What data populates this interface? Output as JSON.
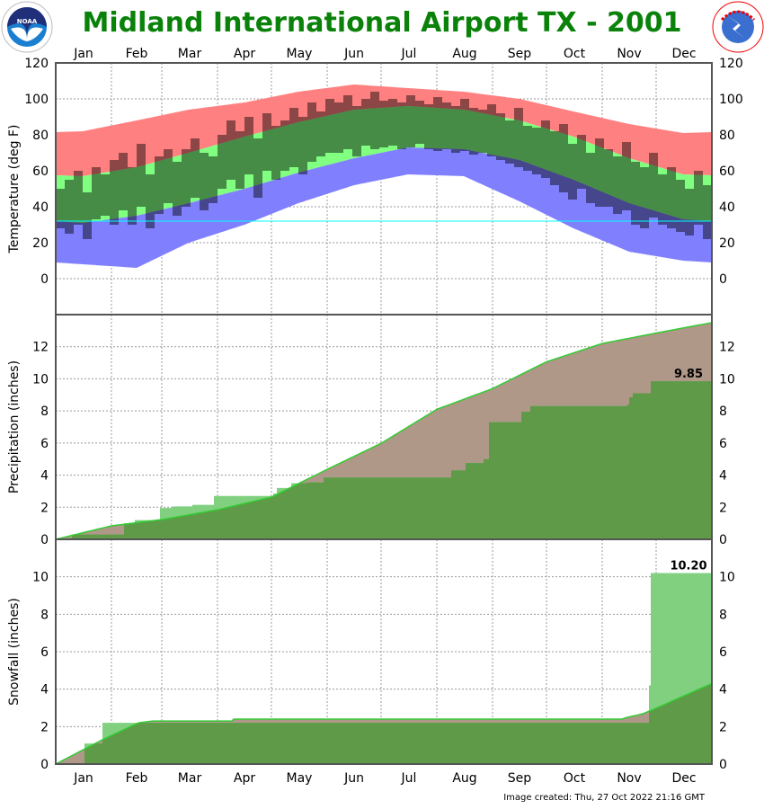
{
  "header": {
    "title": "Midland International Airport TX - 2001",
    "left_logo": "NOAA",
    "right_logo": "NATIONAL WEATHER SERVICE"
  },
  "footer": {
    "credit": "Image created: Thu, 27 Oct 2022 21:16 GMT"
  },
  "colors": {
    "title": "#0a820a",
    "record_high_band": "#ff8080",
    "normal_band": "#80ff80",
    "record_low_band": "#8080ff",
    "observed_overlay": "#000000",
    "freezing_line": "#00ffff",
    "normal_above_observed": "#b09888",
    "observed_above_normal": "#80d080",
    "overlap": "#5f9a48",
    "normal_line": "#33cc33"
  },
  "chart_data": [
    {
      "type": "bar",
      "ylabel": "Temperature (deg F)",
      "ylim": [
        -20,
        120
      ],
      "yticks": [
        0,
        20,
        40,
        60,
        80,
        100,
        120
      ],
      "grid": true,
      "x_tick_labels": [
        "Jan",
        "Feb",
        "Mar",
        "Apr",
        "May",
        "Jun",
        "Jul",
        "Aug",
        "Sep",
        "Oct",
        "Nov",
        "Dec"
      ],
      "freezing_line": 32,
      "climatology_monthly": {
        "record_high": [
          82,
          88,
          94,
          98,
          104,
          108,
          106,
          104,
          100,
          93,
          86,
          81
        ],
        "normal_high": [
          57,
          62,
          70,
          79,
          87,
          94,
          96,
          94,
          88,
          79,
          67,
          58
        ],
        "normal_low": [
          31,
          35,
          42,
          50,
          59,
          67,
          73,
          72,
          66,
          55,
          42,
          33
        ],
        "record_low": [
          8,
          6,
          20,
          30,
          42,
          52,
          58,
          57,
          43,
          28,
          15,
          10
        ]
      },
      "observed_every_5_days": {
        "start_day_of_year": 1,
        "high": [
          50,
          55,
          60,
          48,
          62,
          58,
          66,
          70,
          62,
          75,
          58,
          68,
          72,
          65,
          72,
          78,
          70,
          68,
          80,
          88,
          82,
          90,
          78,
          92,
          85,
          88,
          95,
          90,
          98,
          93,
          100,
          98,
          102,
          96,
          100,
          104,
          99,
          100,
          98,
          102,
          99,
          97,
          101,
          98,
          96,
          100,
          95,
          94,
          97,
          92,
          88,
          95,
          85,
          84,
          88,
          82,
          86,
          75,
          80,
          70,
          78,
          72,
          68,
          76,
          65,
          62,
          70,
          58,
          62,
          55,
          50,
          60,
          52
        ],
        "low": [
          28,
          25,
          30,
          22,
          33,
          35,
          30,
          38,
          30,
          40,
          28,
          36,
          42,
          35,
          40,
          45,
          38,
          42,
          50,
          55,
          50,
          58,
          45,
          60,
          55,
          60,
          62,
          58,
          65,
          68,
          70,
          70,
          72,
          68,
          74,
          72,
          73,
          74,
          72,
          73,
          75,
          72,
          71,
          72,
          70,
          71,
          69,
          70,
          68,
          66,
          64,
          62,
          60,
          58,
          56,
          52,
          48,
          44,
          50,
          42,
          40,
          40,
          36,
          38,
          30,
          28,
          34,
          30,
          28,
          26,
          24,
          30,
          22
        ]
      }
    },
    {
      "type": "area",
      "ylabel": "Precipitation (inches)",
      "ylim": [
        0,
        14
      ],
      "yticks": [
        0,
        2,
        4,
        6,
        8,
        10,
        12
      ],
      "grid": true,
      "normal_cumulative_at_month_start": {
        "days": [
          0,
          31,
          59,
          90,
          120,
          151,
          181,
          212,
          243,
          273,
          304,
          334,
          365
        ],
        "values": [
          0,
          0.84,
          1.23,
          1.84,
          2.63,
          4.36,
          5.98,
          8.1,
          9.39,
          11.06,
          12.2,
          12.85,
          13.5
        ]
      },
      "observed_cumulative_steps": {
        "days": [
          0,
          9,
          38,
          44,
          58,
          65,
          76,
          88,
          121,
          123,
          131,
          140,
          149,
          220,
          228,
          238,
          241,
          259,
          264,
          318,
          319,
          321,
          331
        ],
        "values": [
          0,
          0.3,
          1.0,
          1.2,
          1.95,
          2.05,
          2.15,
          2.7,
          2.85,
          3.2,
          3.5,
          3.55,
          3.85,
          4.3,
          4.75,
          5.0,
          7.3,
          7.95,
          8.3,
          8.4,
          8.85,
          9.1,
          9.85
        ]
      },
      "annotation": "9.85"
    },
    {
      "type": "area",
      "ylabel": "Snowfall (inches)",
      "ylim": [
        0,
        12
      ],
      "yticks": [
        0,
        2,
        4,
        6,
        8,
        10
      ],
      "grid": true,
      "normal_cumulative": {
        "days": [
          0,
          16,
          26,
          46,
          54,
          98,
          99,
          315,
          318,
          323,
          327,
          332,
          365
        ],
        "values": [
          0,
          0.8,
          1.3,
          2.2,
          2.3,
          2.3,
          2.4,
          2.4,
          2.5,
          2.6,
          2.7,
          2.9,
          4.3
        ]
      },
      "observed_cumulative_steps": {
        "days": [
          0,
          16,
          26,
          330,
          331
        ],
        "values": [
          0,
          1.1,
          2.2,
          4.2,
          10.2
        ]
      },
      "annotation": "10.20"
    }
  ]
}
